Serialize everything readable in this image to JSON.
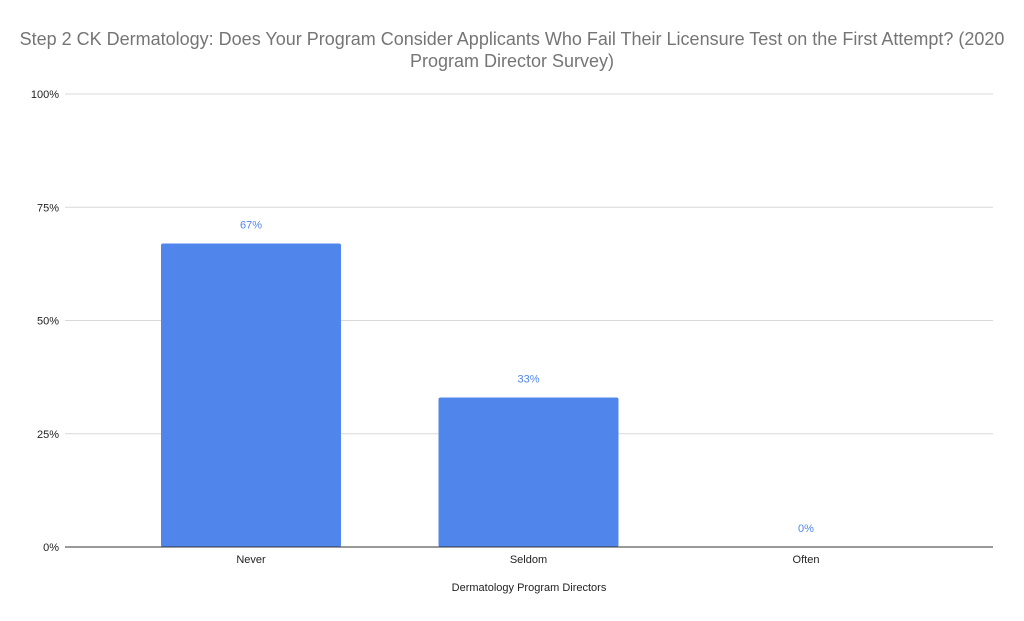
{
  "chart_data": {
    "type": "bar",
    "title": "Step 2 CK Dermatology: Does Your Program Consider Applicants Who Fail Their Licensure Test on the First Attempt? (2020 Program Director Survey)",
    "xlabel": "Dermatology Program Directors",
    "ylabel": "",
    "categories": [
      "Never",
      "Seldom",
      "Often"
    ],
    "values": [
      67,
      33,
      0
    ],
    "data_labels": [
      "67%",
      "33%",
      "0%"
    ],
    "ylim": [
      0,
      100
    ],
    "yticks": [
      0,
      25,
      50,
      75,
      100
    ],
    "ytick_labels": [
      "0%",
      "25%",
      "50%",
      "75%",
      "100%"
    ],
    "grid": true,
    "legend": "none",
    "colors": {
      "bar": "#5086ec",
      "label": "#5086ec",
      "title": "#757575",
      "grid": "#d9d9d9",
      "axis": "#333333"
    }
  }
}
